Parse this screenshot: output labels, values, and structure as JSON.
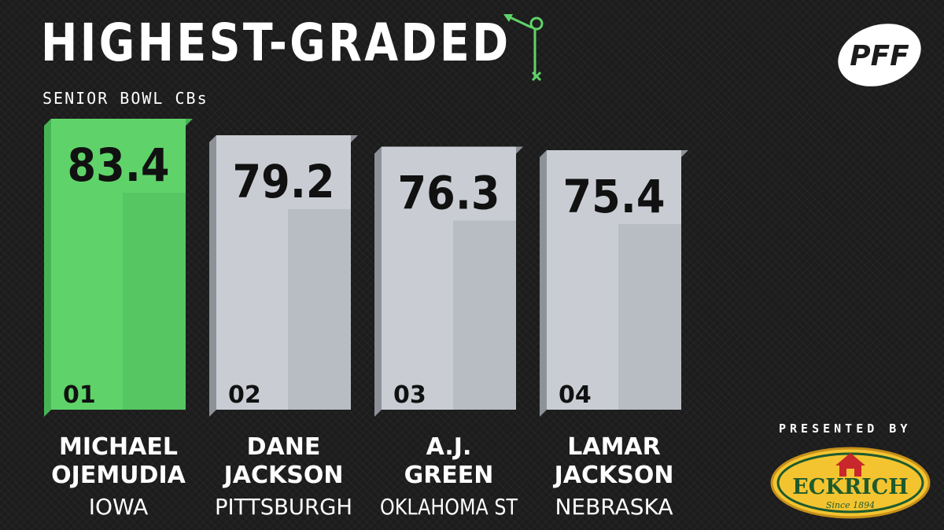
{
  "title": "HIGHEST-GRADED",
  "subtitle": "SENIOR BOWL CBs",
  "logo_text": "PFF",
  "sponsor": {
    "presented_by": "PRESENTED BY",
    "name": "ECKRICH",
    "tagline": "Since 1894"
  },
  "colors": {
    "background": "#1c1c1c",
    "highlight": "#5fd36a",
    "bar": "#c9cdd3",
    "text_dark": "#111111"
  },
  "chart_data": {
    "type": "bar",
    "title": "HIGHEST-GRADED",
    "subtitle": "SENIOR BOWL CBs",
    "categories": [
      "MICHAEL OJEMUDIA",
      "DANE JACKSON",
      "A.J. GREEN",
      "LAMAR JACKSON"
    ],
    "values": [
      83.4,
      79.2,
      76.3,
      75.4
    ],
    "value_labels": [
      "83.4",
      "79.2",
      "76.3",
      "75.4"
    ],
    "ranks": [
      "01",
      "02",
      "03",
      "04"
    ],
    "name_lines": [
      [
        "MICHAEL",
        "OJEMUDIA"
      ],
      [
        "DANE",
        "JACKSON"
      ],
      [
        "A.J.",
        "GREEN"
      ],
      [
        "LAMAR",
        "JACKSON"
      ]
    ],
    "schools": [
      "IOWA",
      "PITTSBURGH",
      "OKLAHOMA ST",
      "NEBRASKA"
    ],
    "highlight_index": 0,
    "grid": false
  }
}
